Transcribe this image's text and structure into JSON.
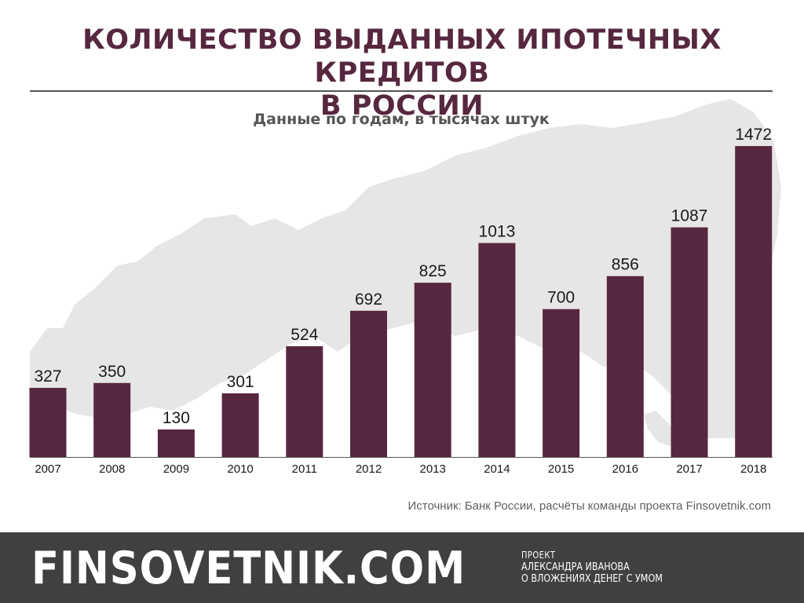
{
  "title": "КОЛИЧЕСТВО ВЫДАННЫХ ИПОТЕЧНЫХ КРЕДИТОВ В РОССИИ",
  "title_lines": [
    "КОЛИЧЕСТВО ВЫДАННЫХ ИПОТЕЧНЫХ КРЕДИТОВ",
    "В РОССИИ"
  ],
  "subtitle": "Данные по годам, в тысячах штук",
  "source": "Источник: Банк России, расчёты команды проекта Finsovetnik.com",
  "footer": {
    "brand": "FINSOVETNIK.COM",
    "tagline_1": "ПРОЕКТ",
    "tagline_2": "АЛЕКСАНДРА ИВАНОВА",
    "tagline_3": "О ВЛОЖЕНИЯХ ДЕНЕГ С УМОМ"
  },
  "colors": {
    "bar": "#57273f",
    "title": "#57273f",
    "map_background": "#e6e6e6",
    "footer": "#404040"
  },
  "chart_data": {
    "type": "bar",
    "title": "Данные по годам, в тысячах штук",
    "categories": [
      "2007",
      "2008",
      "2009",
      "2010",
      "2011",
      "2012",
      "2013",
      "2014",
      "2015",
      "2016",
      "2017",
      "2018"
    ],
    "values": [
      327,
      350,
      130,
      301,
      524,
      692,
      825,
      1013,
      700,
      856,
      1087,
      1472
    ],
    "xlabel": "",
    "ylabel": "",
    "ylim": [
      0,
      1472
    ],
    "grid": false,
    "legend": "none"
  }
}
